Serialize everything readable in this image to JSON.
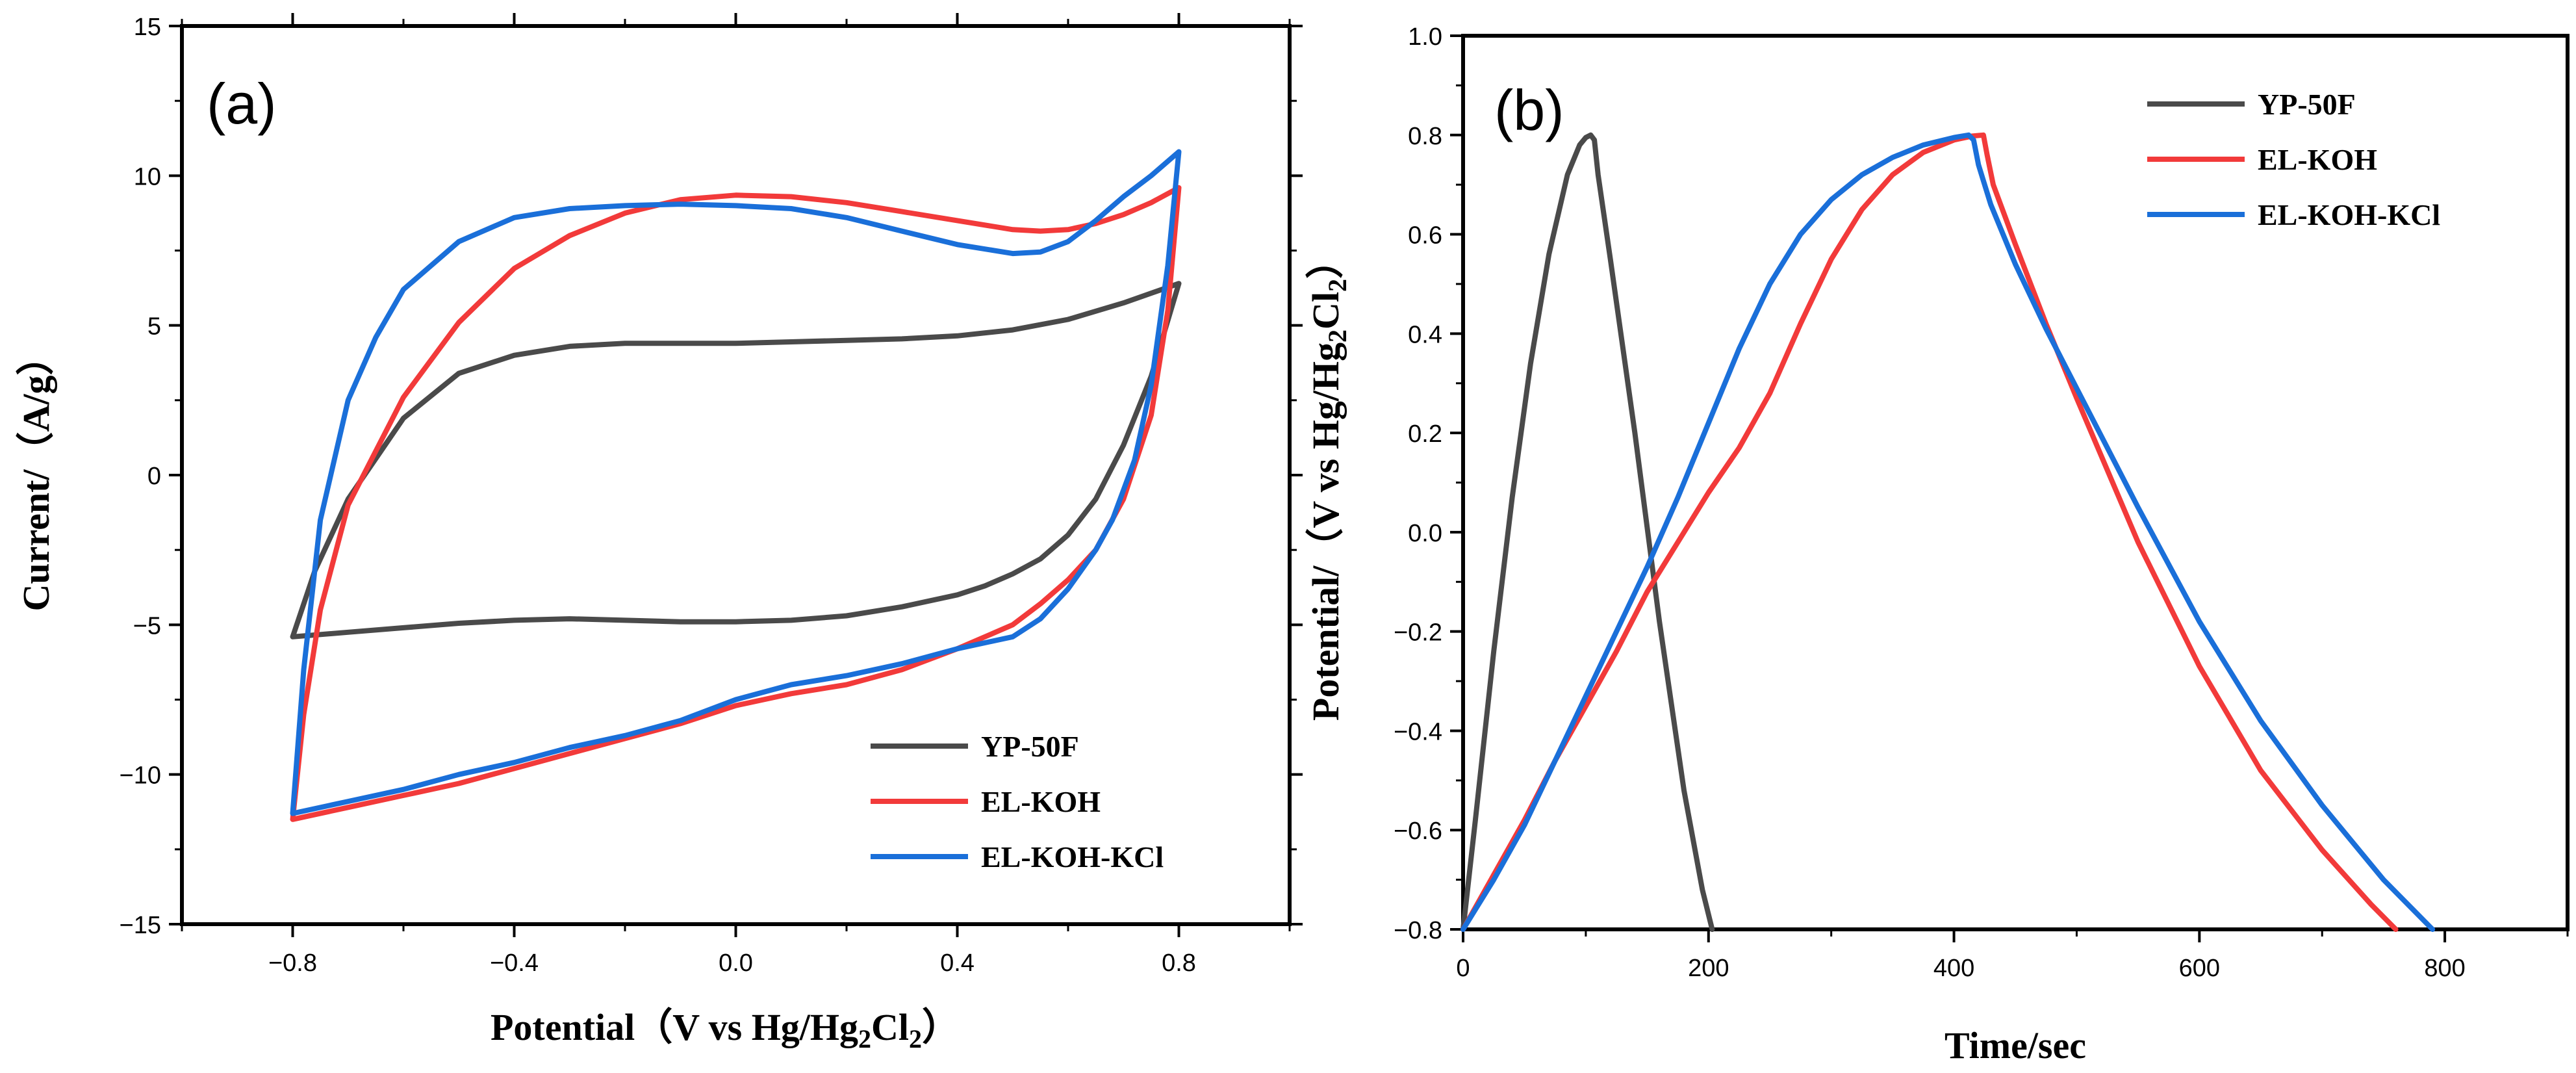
{
  "chart_data": [
    {
      "type": "line",
      "panel_label": "(a)",
      "xlabel_main": "Potential（V vs Hg/Hg",
      "xlabel_sub1": "2",
      "xlabel_mid": "Cl",
      "xlabel_sub2": "2",
      "xlabel_end": "）",
      "ylabel": "Current/（A/g）",
      "xlim": [
        -1.0,
        1.0
      ],
      "ylim": [
        -15,
        15
      ],
      "xticks": [
        -0.8,
        -0.4,
        0.0,
        0.4,
        0.8
      ],
      "xtick_labels": [
        "−0.8",
        "−0.4",
        "0.0",
        "0.4",
        "0.8"
      ],
      "yticks": [
        -15,
        -10,
        -5,
        0,
        5,
        10,
        15
      ],
      "ytick_labels": [
        "−15",
        "−10",
        "−5",
        "0",
        "5",
        "10",
        "15"
      ],
      "legend_position": "bottom-right",
      "series": [
        {
          "name": "YP-50F",
          "color": "#4a4a4a",
          "x": [
            -0.8,
            -0.76,
            -0.7,
            -0.6,
            -0.5,
            -0.4,
            -0.3,
            -0.2,
            -0.1,
            0.0,
            0.1,
            0.2,
            0.3,
            0.4,
            0.5,
            0.6,
            0.7,
            0.8,
            0.8,
            0.75,
            0.7,
            0.65,
            0.6,
            0.55,
            0.5,
            0.45,
            0.4,
            0.3,
            0.2,
            0.1,
            0.0,
            -0.1,
            -0.2,
            -0.3,
            -0.4,
            -0.5,
            -0.6,
            -0.7,
            -0.8
          ],
          "y": [
            -5.4,
            -3.2,
            -0.8,
            1.9,
            3.4,
            4.0,
            4.3,
            4.4,
            4.4,
            4.4,
            4.45,
            4.5,
            4.55,
            4.65,
            4.85,
            5.2,
            5.75,
            6.4,
            6.4,
            3.3,
            1.0,
            -0.8,
            -2.0,
            -2.8,
            -3.3,
            -3.7,
            -4.0,
            -4.4,
            -4.7,
            -4.85,
            -4.9,
            -4.9,
            -4.85,
            -4.8,
            -4.85,
            -4.95,
            -5.1,
            -5.25,
            -5.4
          ]
        },
        {
          "name": "EL-KOH",
          "color": "#f23a3a",
          "x": [
            -0.8,
            -0.78,
            -0.75,
            -0.7,
            -0.6,
            -0.5,
            -0.4,
            -0.3,
            -0.2,
            -0.1,
            0.0,
            0.1,
            0.2,
            0.3,
            0.4,
            0.5,
            0.55,
            0.6,
            0.65,
            0.7,
            0.75,
            0.8,
            0.8,
            0.78,
            0.75,
            0.7,
            0.65,
            0.6,
            0.55,
            0.5,
            0.4,
            0.3,
            0.2,
            0.1,
            0.0,
            -0.1,
            -0.2,
            -0.3,
            -0.4,
            -0.5,
            -0.6,
            -0.7,
            -0.8
          ],
          "y": [
            -11.5,
            -8.0,
            -4.5,
            -1.0,
            2.6,
            5.1,
            6.9,
            8.0,
            8.75,
            9.2,
            9.35,
            9.3,
            9.1,
            8.8,
            8.5,
            8.2,
            8.15,
            8.2,
            8.4,
            8.7,
            9.1,
            9.6,
            9.6,
            5.5,
            2.0,
            -0.8,
            -2.5,
            -3.5,
            -4.3,
            -5.0,
            -5.8,
            -6.5,
            -7.0,
            -7.3,
            -7.7,
            -8.3,
            -8.8,
            -9.3,
            -9.8,
            -10.3,
            -10.7,
            -11.1,
            -11.5
          ]
        },
        {
          "name": "EL-KOH-KCl",
          "color": "#1a6fd9",
          "x": [
            -0.8,
            -0.78,
            -0.75,
            -0.7,
            -0.65,
            -0.6,
            -0.5,
            -0.4,
            -0.3,
            -0.2,
            -0.1,
            0.0,
            0.1,
            0.2,
            0.3,
            0.4,
            0.5,
            0.55,
            0.6,
            0.65,
            0.7,
            0.75,
            0.8,
            0.8,
            0.78,
            0.75,
            0.72,
            0.7,
            0.68,
            0.65,
            0.6,
            0.55,
            0.5,
            0.45,
            0.4,
            0.3,
            0.2,
            0.1,
            0.0,
            -0.1,
            -0.2,
            -0.3,
            -0.4,
            -0.5,
            -0.6,
            -0.7,
            -0.8
          ],
          "y": [
            -11.3,
            -6.5,
            -1.5,
            2.5,
            4.6,
            6.2,
            7.8,
            8.6,
            8.9,
            9.0,
            9.05,
            9.0,
            8.9,
            8.6,
            8.15,
            7.7,
            7.4,
            7.45,
            7.8,
            8.5,
            9.3,
            10.0,
            10.8,
            10.8,
            7.0,
            3.0,
            0.5,
            -0.5,
            -1.5,
            -2.5,
            -3.8,
            -4.8,
            -5.4,
            -5.6,
            -5.8,
            -6.3,
            -6.7,
            -7.0,
            -7.5,
            -8.2,
            -8.7,
            -9.1,
            -9.6,
            -10.0,
            -10.5,
            -10.9,
            -11.3
          ]
        }
      ]
    },
    {
      "type": "line",
      "panel_label": "(b)",
      "xlabel": "Time/sec",
      "ylabel_main": "Potential/（V vs Hg/Hg",
      "ylabel_sub1": "2",
      "ylabel_mid": "Cl",
      "ylabel_sub2": "2",
      "ylabel_end": "）",
      "xlim": [
        0,
        900
      ],
      "ylim": [
        -0.8,
        1.0
      ],
      "xticks": [
        0,
        200,
        400,
        600,
        800
      ],
      "xtick_labels": [
        "0",
        "200",
        "400",
        "600",
        "800"
      ],
      "yticks": [
        -0.8,
        -0.6,
        -0.4,
        -0.2,
        0.0,
        0.2,
        0.4,
        0.6,
        0.8,
        1.0
      ],
      "ytick_labels": [
        "−0.8",
        "−0.6",
        "−0.4",
        "−0.2",
        "0.0",
        "0.2",
        "0.4",
        "0.6",
        "0.8",
        "1.0"
      ],
      "legend_position": "top-right",
      "series": [
        {
          "name": "YP-50F",
          "color": "#4a4a4a",
          "x": [
            0,
            10,
            25,
            40,
            55,
            70,
            85,
            95,
            100,
            104,
            107,
            110,
            120,
            140,
            160,
            180,
            195,
            203
          ],
          "y": [
            -0.8,
            -0.58,
            -0.24,
            0.07,
            0.34,
            0.56,
            0.72,
            0.78,
            0.795,
            0.8,
            0.79,
            0.72,
            0.55,
            0.2,
            -0.18,
            -0.52,
            -0.72,
            -0.8
          ]
        },
        {
          "name": "EL-KOH",
          "color": "#f23a3a",
          "x": [
            0,
            25,
            50,
            75,
            100,
            125,
            150,
            175,
            200,
            225,
            250,
            275,
            300,
            325,
            350,
            375,
            400,
            415,
            424,
            427,
            432,
            450,
            475,
            500,
            550,
            600,
            650,
            700,
            740,
            760
          ],
          "y": [
            -0.8,
            -0.69,
            -0.58,
            -0.46,
            -0.35,
            -0.24,
            -0.12,
            -0.02,
            0.08,
            0.17,
            0.28,
            0.42,
            0.55,
            0.65,
            0.72,
            0.765,
            0.79,
            0.798,
            0.8,
            0.76,
            0.7,
            0.58,
            0.42,
            0.27,
            -0.02,
            -0.27,
            -0.48,
            -0.64,
            -0.75,
            -0.8
          ]
        },
        {
          "name": "EL-KOH-KCl",
          "color": "#1a6fd9",
          "x": [
            0,
            25,
            50,
            75,
            100,
            125,
            150,
            175,
            200,
            225,
            250,
            275,
            300,
            325,
            350,
            375,
            400,
            412,
            416,
            420,
            430,
            450,
            475,
            500,
            550,
            600,
            650,
            700,
            750,
            790
          ],
          "y": [
            -0.8,
            -0.7,
            -0.59,
            -0.46,
            -0.33,
            -0.2,
            -0.07,
            0.07,
            0.22,
            0.37,
            0.5,
            0.6,
            0.67,
            0.72,
            0.755,
            0.78,
            0.795,
            0.8,
            0.79,
            0.74,
            0.66,
            0.54,
            0.41,
            0.29,
            0.05,
            -0.18,
            -0.38,
            -0.55,
            -0.7,
            -0.8
          ]
        }
      ]
    }
  ]
}
